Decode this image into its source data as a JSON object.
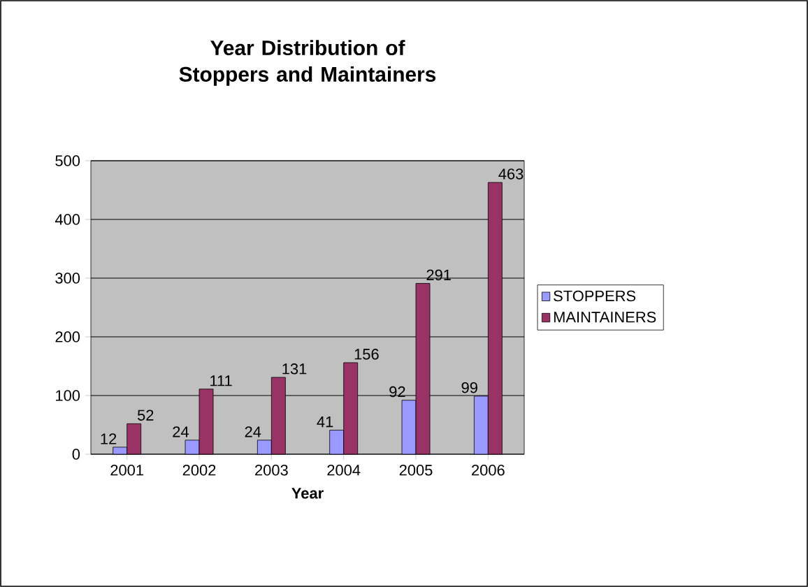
{
  "chart_data": {
    "type": "bar",
    "title": "Year Distribution of Stoppers and Maintainers",
    "xlabel": "Year",
    "categories": [
      "2001",
      "2002",
      "2003",
      "2004",
      "2005",
      "2006"
    ],
    "series": [
      {
        "name": "STOPPERS",
        "color": "#9999ff",
        "values": [
          12,
          24,
          24,
          41,
          92,
          99
        ]
      },
      {
        "name": "MAINTAINERS",
        "color": "#993366",
        "values": [
          52,
          111,
          131,
          156,
          291,
          463
        ]
      }
    ],
    "ylim": [
      0,
      500
    ],
    "yticks": [
      0,
      100,
      200,
      300,
      400,
      500
    ],
    "grid": "y",
    "legend": "right",
    "data_labels": true
  }
}
